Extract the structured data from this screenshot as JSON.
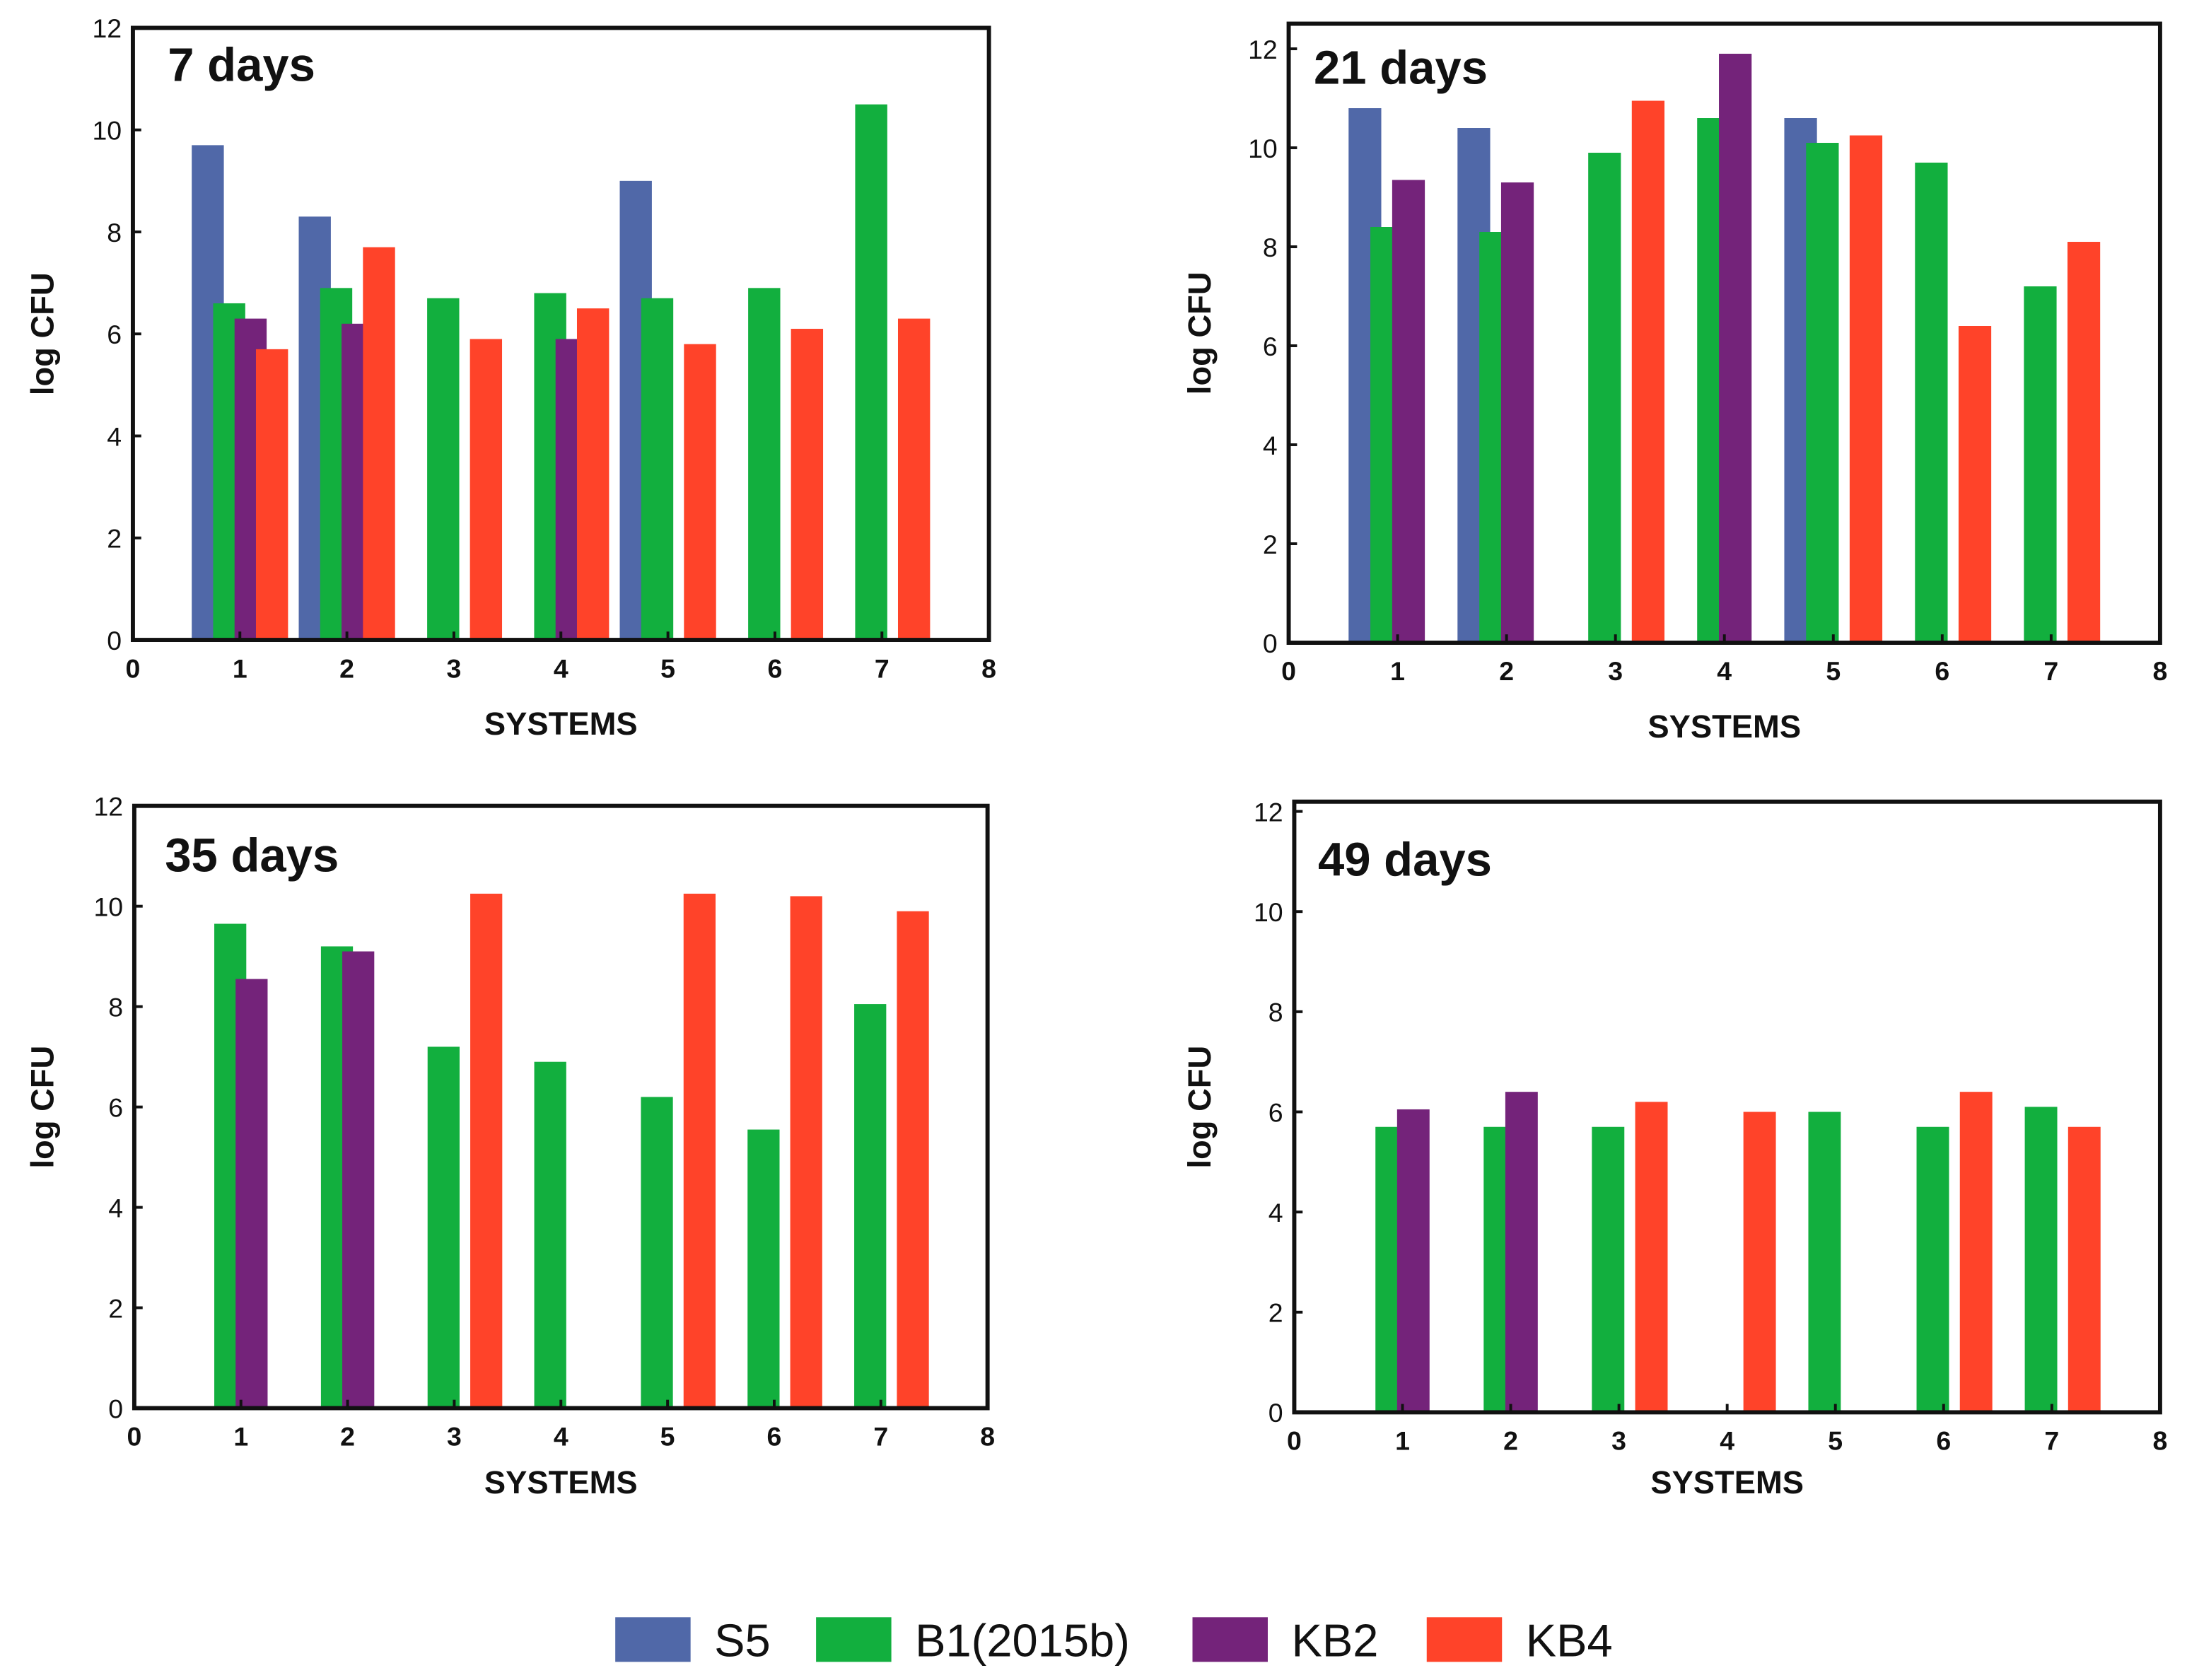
{
  "legend": [
    {
      "name": "S5",
      "color": "#5068A8"
    },
    {
      "name": "B1(2015b)",
      "color": "#12AF3E"
    },
    {
      "name": "KB2",
      "color": "#74237A"
    },
    {
      "name": "KB4",
      "color": "#FF4329"
    }
  ],
  "chart_data": [
    {
      "type": "bar",
      "title": "7 days",
      "xlabel": "SYSTEMS",
      "ylabel": "log CFU",
      "xlim": [
        0,
        8
      ],
      "ylim": [
        0,
        12
      ],
      "xticks": [
        0,
        1,
        2,
        3,
        4,
        5,
        6,
        7,
        8
      ],
      "yticks": [
        0,
        2,
        4,
        6,
        8,
        10,
        12
      ],
      "categories": [
        1,
        2,
        3,
        4,
        5,
        6,
        7
      ],
      "series": [
        {
          "name": "S5",
          "values": [
            9.7,
            8.3,
            null,
            null,
            9.0,
            null,
            null
          ]
        },
        {
          "name": "B1(2015b)",
          "values": [
            6.6,
            6.9,
            6.7,
            6.8,
            6.7,
            6.9,
            10.5
          ]
        },
        {
          "name": "KB2",
          "values": [
            6.3,
            6.2,
            null,
            5.9,
            null,
            null,
            null
          ]
        },
        {
          "name": "KB4",
          "values": [
            5.7,
            7.7,
            5.9,
            6.5,
            5.8,
            6.1,
            6.3
          ]
        }
      ]
    },
    {
      "type": "bar",
      "title": "21 days",
      "xlabel": "SYSTEMS",
      "ylabel": "log CFU",
      "xlim": [
        0,
        8
      ],
      "ylim": [
        0,
        12
      ],
      "xticks": [
        0,
        1,
        2,
        3,
        4,
        5,
        6,
        7,
        8
      ],
      "yticks": [
        0,
        2,
        4,
        6,
        8,
        10,
        12
      ],
      "categories": [
        1,
        2,
        3,
        4,
        5,
        6,
        7
      ],
      "series": [
        {
          "name": "S5",
          "values": [
            10.8,
            10.4,
            null,
            null,
            10.6,
            null,
            null
          ]
        },
        {
          "name": "B1(2015b)",
          "values": [
            8.4,
            8.3,
            9.9,
            10.6,
            10.1,
            9.7,
            7.2
          ]
        },
        {
          "name": "KB2",
          "values": [
            9.35,
            9.3,
            null,
            11.9,
            null,
            null,
            null
          ]
        },
        {
          "name": "KB4",
          "values": [
            null,
            null,
            10.95,
            null,
            10.25,
            6.4,
            8.1
          ]
        }
      ]
    },
    {
      "type": "bar",
      "title": "35 days",
      "xlabel": "SYSTEMS",
      "ylabel": "log CFU",
      "xlim": [
        0,
        8
      ],
      "ylim": [
        0,
        12
      ],
      "xticks": [
        0,
        1,
        2,
        3,
        4,
        5,
        6,
        7,
        8
      ],
      "yticks": [
        0,
        2,
        4,
        6,
        8,
        10,
        12
      ],
      "categories": [
        1,
        2,
        3,
        4,
        5,
        6,
        7
      ],
      "series": [
        {
          "name": "S5",
          "values": [
            null,
            null,
            null,
            null,
            null,
            null,
            null
          ]
        },
        {
          "name": "B1(2015b)",
          "values": [
            9.65,
            9.2,
            7.2,
            6.9,
            6.2,
            5.55,
            8.05
          ]
        },
        {
          "name": "KB2",
          "values": [
            8.55,
            9.1,
            null,
            null,
            null,
            null,
            null
          ]
        },
        {
          "name": "KB4",
          "values": [
            null,
            null,
            10.25,
            null,
            10.25,
            10.2,
            9.9
          ]
        }
      ]
    },
    {
      "type": "bar",
      "title": "49 days",
      "xlabel": "SYSTEMS",
      "ylabel": "log CFU",
      "xlim": [
        0,
        8
      ],
      "ylim": [
        0,
        12
      ],
      "xticks": [
        0,
        1,
        2,
        3,
        4,
        5,
        6,
        7,
        8
      ],
      "yticks": [
        0,
        2,
        4,
        6,
        8,
        10,
        12
      ],
      "categories": [
        1,
        2,
        3,
        4,
        5,
        6,
        7
      ],
      "series": [
        {
          "name": "S5",
          "values": [
            null,
            null,
            null,
            null,
            null,
            null,
            null
          ]
        },
        {
          "name": "B1(2015b)",
          "values": [
            5.7,
            5.7,
            5.7,
            0,
            6.0,
            5.7,
            6.1
          ]
        },
        {
          "name": "KB2",
          "values": [
            6.05,
            6.4,
            null,
            null,
            null,
            null,
            null
          ]
        },
        {
          "name": "KB4",
          "values": [
            null,
            null,
            6.2,
            6.0,
            null,
            6.4,
            5.7
          ]
        }
      ]
    }
  ]
}
